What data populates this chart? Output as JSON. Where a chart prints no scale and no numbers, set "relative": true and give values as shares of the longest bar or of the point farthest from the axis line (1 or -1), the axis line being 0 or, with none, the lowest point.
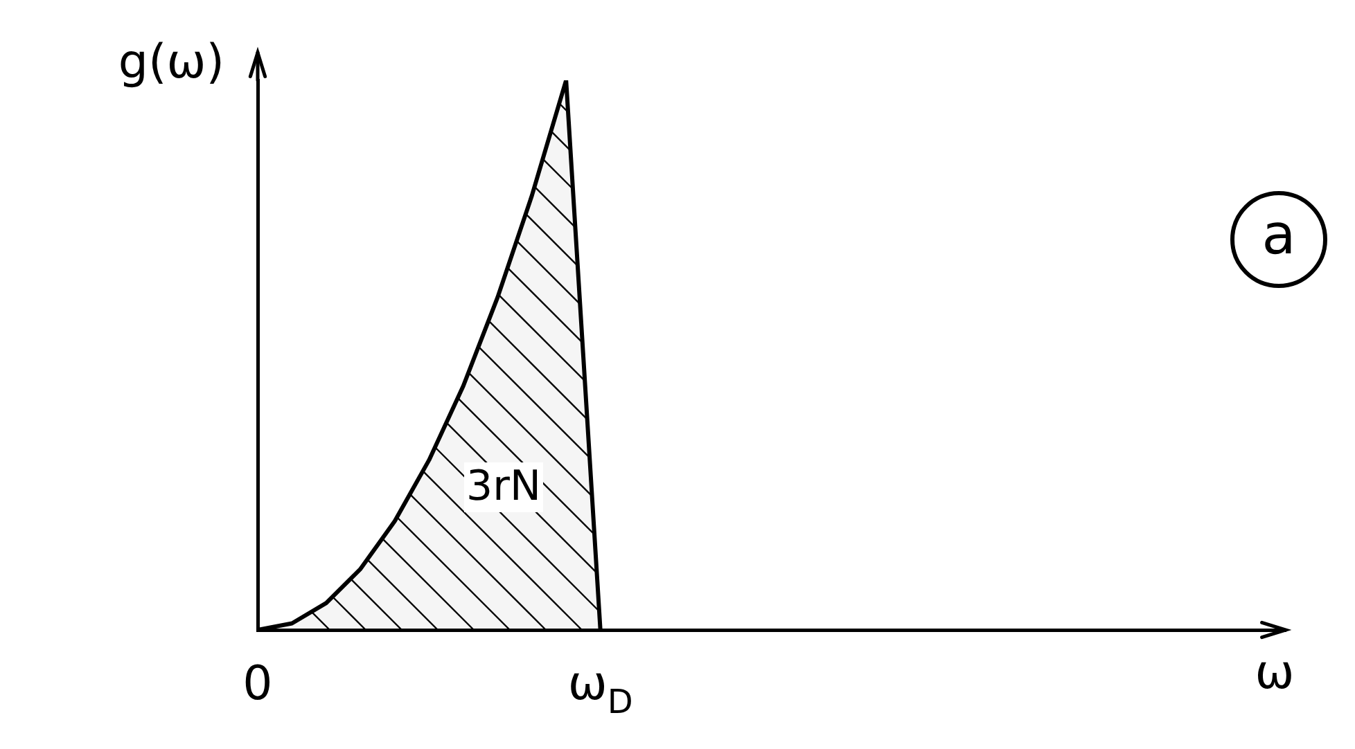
{
  "chart_data": {
    "type": "area",
    "relative": true,
    "xlabel": "ω",
    "ylabel": "g(ω)",
    "categories": [
      "0",
      null,
      null,
      null,
      null,
      null,
      null,
      null,
      null,
      null,
      "ω$_{D}$",
      null,
      null,
      null,
      null,
      null,
      null,
      null,
      null,
      null,
      null,
      null,
      null,
      null,
      null,
      null,
      null,
      null,
      null,
      null,
      null
    ],
    "tick_labels": "x",
    "marker": "none",
    "line_style": "solid",
    "series": [
      {
        "color": "#000000",
        "values": [
          0,
          0.012,
          0.049,
          0.111,
          0.198,
          0.309,
          0.444,
          0.605,
          0.79,
          1,
          0,
          null,
          null,
          null,
          null,
          null,
          null,
          null,
          null,
          null,
          null,
          null,
          null,
          null,
          null,
          null,
          null,
          null,
          null,
          null,
          null
        ]
      }
    ],
    "annotations": [
      "3rN",
      "a"
    ]
  }
}
